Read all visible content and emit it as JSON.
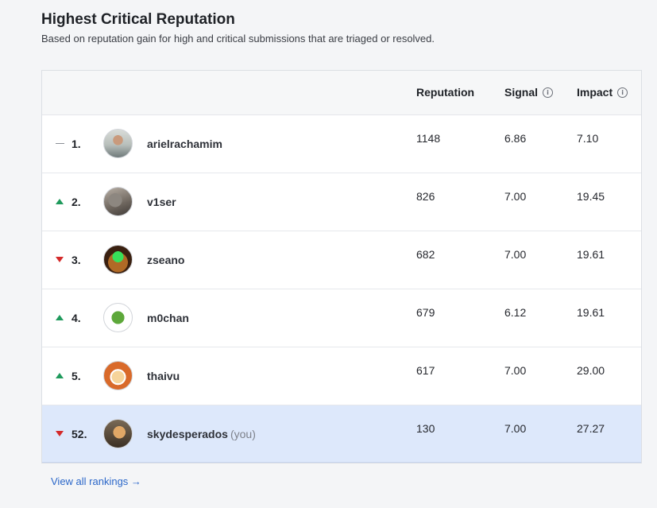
{
  "header": {
    "title": "Highest Critical Reputation",
    "subtitle": "Based on reputation gain for high and critical submissions that are triaged or resolved."
  },
  "table": {
    "columns": {
      "reputation": "Reputation",
      "signal": "Signal",
      "impact": "Impact"
    },
    "info_glyph": "i",
    "rows": [
      {
        "trend": "same",
        "rank": "1.",
        "username": "arielrachamim",
        "reputation": "1148",
        "signal": "6.86",
        "impact": "7.10",
        "is_you": false
      },
      {
        "trend": "up",
        "rank": "2.",
        "username": "v1ser",
        "reputation": "826",
        "signal": "7.00",
        "impact": "19.45",
        "is_you": false
      },
      {
        "trend": "down",
        "rank": "3.",
        "username": "zseano",
        "reputation": "682",
        "signal": "7.00",
        "impact": "19.61",
        "is_you": false
      },
      {
        "trend": "up",
        "rank": "4.",
        "username": "m0chan",
        "reputation": "679",
        "signal": "6.12",
        "impact": "19.61",
        "is_you": false
      },
      {
        "trend": "up",
        "rank": "5.",
        "username": "thaivu",
        "reputation": "617",
        "signal": "7.00",
        "impact": "29.00",
        "is_you": false
      },
      {
        "trend": "down",
        "rank": "52.",
        "username": "skydesperados",
        "you_label": "(you)",
        "reputation": "130",
        "signal": "7.00",
        "impact": "27.27",
        "is_you": true
      }
    ]
  },
  "footer": {
    "view_all_label": "View all rankings →"
  },
  "colors": {
    "trend_up": "#1f9a5c",
    "trend_down": "#d42a2a",
    "you_row_bg": "#dde8fb",
    "link": "#2b67c9"
  }
}
